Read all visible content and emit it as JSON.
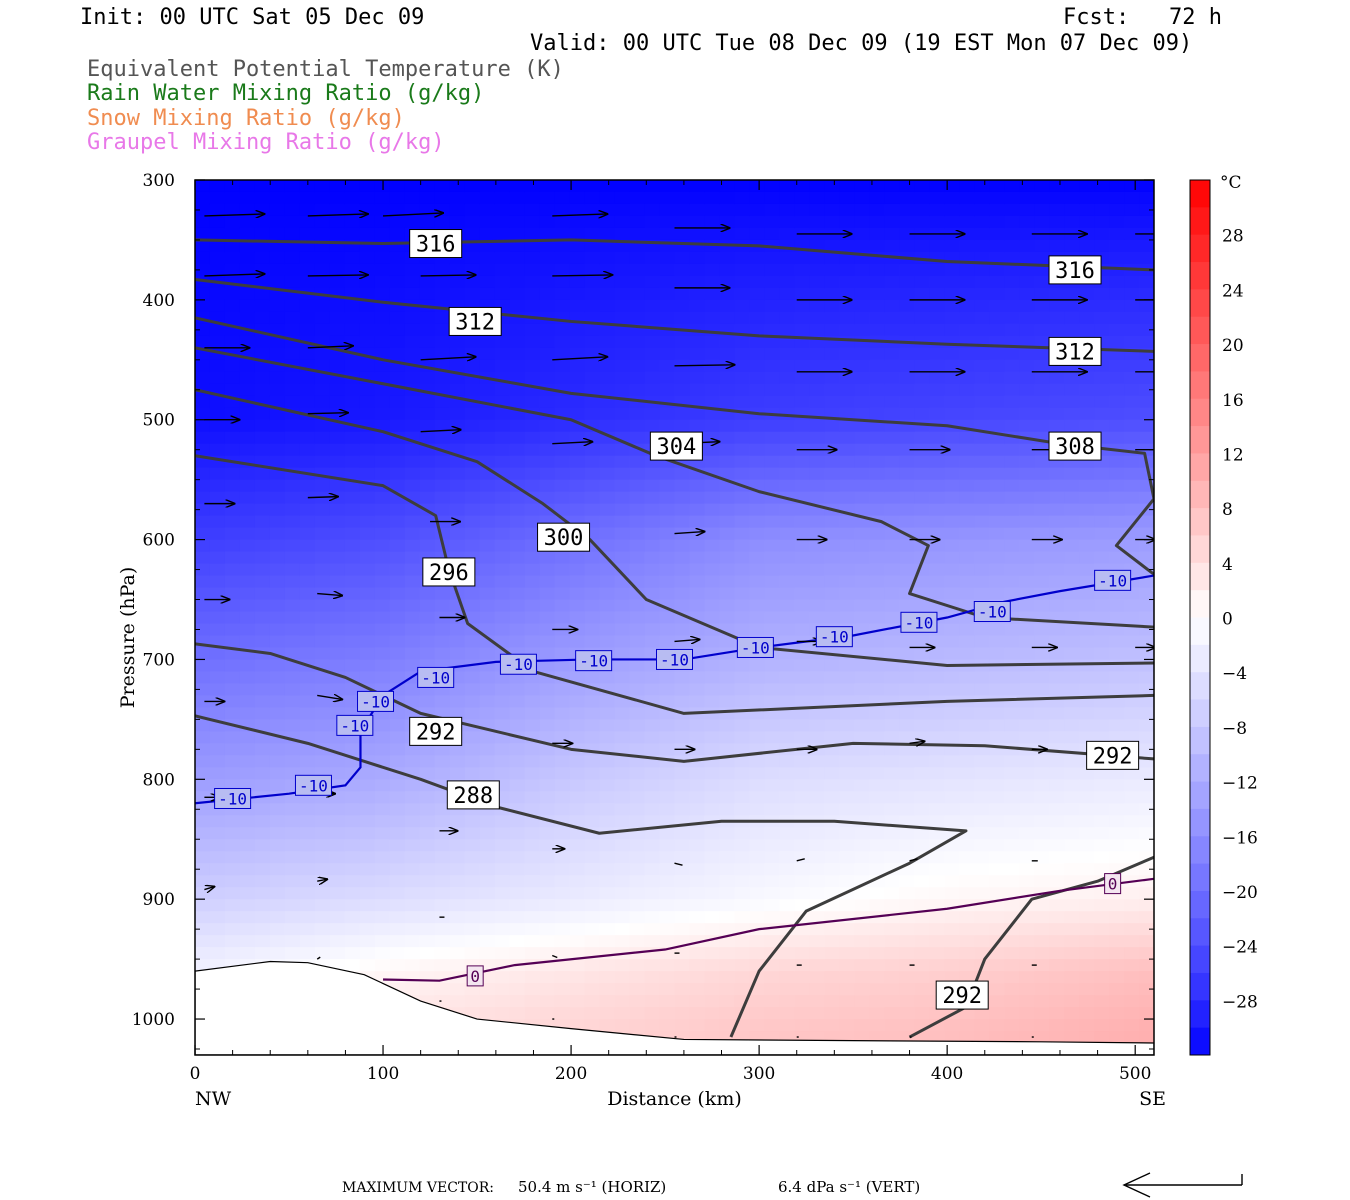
{
  "header": {
    "init": "Init: 00 UTC Sat 05 Dec 09",
    "fcst": "Fcst:   72 h",
    "valid": "Valid: 00 UTC Tue 08 Dec 09 (19 EST Mon 07 Dec 09)"
  },
  "legend": [
    {
      "text": "Equivalent Potential Temperature (K)",
      "color": "#555555"
    },
    {
      "text": "Rain Water Mixing Ratio (g/kg)",
      "color": "#1a7a1a"
    },
    {
      "text": "Snow Mixing Ratio (g/kg)",
      "color": "#f08c50"
    },
    {
      "text": "Graupel Mixing Ratio (g/kg)",
      "color": "#e878e8"
    }
  ],
  "footer": {
    "max_vector_label": "MAXIMUM VECTOR:",
    "horiz": "50.4 m s⁻¹ (HORIZ)",
    "vert": "6.4 dPa s⁻¹ (VERT)"
  },
  "chart_data": {
    "type": "cross-section",
    "xlabel": "Distance (km)",
    "ylabel": "Pressure (hPa)",
    "xlim": [
      0,
      510
    ],
    "ylim": [
      1030,
      300
    ],
    "x_ticks": [
      0,
      100,
      200,
      300,
      400,
      500
    ],
    "y_ticks": [
      300,
      400,
      500,
      600,
      700,
      800,
      900,
      1000
    ],
    "x_end_labels": {
      "left": "NW",
      "right": "SE"
    },
    "colorbar": {
      "unit": "°C",
      "ticks": [
        28,
        24,
        20,
        16,
        12,
        8,
        4,
        0,
        -4,
        -8,
        -12,
        -16,
        -20,
        -24,
        -28
      ],
      "min": -32,
      "max": 32
    },
    "temperature_field": [
      {
        "x": 0,
        "levels": [
          [
            300,
            -32
          ],
          [
            500,
            -31
          ],
          [
            600,
            -26
          ],
          [
            700,
            -20
          ],
          [
            800,
            -14
          ],
          [
            900,
            -7
          ],
          [
            960,
            -2
          ],
          [
            1000,
            0
          ]
        ]
      },
      {
        "x": 100,
        "levels": [
          [
            300,
            -32
          ],
          [
            500,
            -30
          ],
          [
            600,
            -24
          ],
          [
            700,
            -18
          ],
          [
            800,
            -12
          ],
          [
            900,
            -5
          ],
          [
            960,
            1
          ],
          [
            1000,
            3
          ]
        ]
      },
      {
        "x": 200,
        "levels": [
          [
            300,
            -32
          ],
          [
            500,
            -28
          ],
          [
            600,
            -20
          ],
          [
            700,
            -14
          ],
          [
            800,
            -8
          ],
          [
            900,
            -3
          ],
          [
            960,
            3
          ],
          [
            1000,
            5
          ]
        ]
      },
      {
        "x": 300,
        "levels": [
          [
            300,
            -32
          ],
          [
            500,
            -26
          ],
          [
            600,
            -16
          ],
          [
            700,
            -11
          ],
          [
            800,
            -5
          ],
          [
            900,
            -1
          ],
          [
            960,
            5
          ],
          [
            1010,
            7
          ]
        ]
      },
      {
        "x": 400,
        "levels": [
          [
            300,
            -32
          ],
          [
            500,
            -25
          ],
          [
            600,
            -15
          ],
          [
            700,
            -10
          ],
          [
            800,
            -4
          ],
          [
            900,
            1
          ],
          [
            960,
            6
          ],
          [
            1010,
            8
          ]
        ]
      },
      {
        "x": 510,
        "levels": [
          [
            300,
            -32
          ],
          [
            500,
            -24
          ],
          [
            600,
            -14
          ],
          [
            700,
            -9
          ],
          [
            800,
            -3
          ],
          [
            900,
            2
          ],
          [
            960,
            8
          ],
          [
            1010,
            10
          ]
        ]
      }
    ],
    "theta_e_contours": [
      {
        "value": 316,
        "points": [
          [
            0,
            350
          ],
          [
            100,
            353
          ],
          [
            200,
            350
          ],
          [
            300,
            355
          ],
          [
            400,
            368
          ],
          [
            510,
            375
          ]
        ],
        "labels": [
          [
            128,
            353
          ],
          [
            468,
            375
          ]
        ]
      },
      {
        "value": 312,
        "points": [
          [
            0,
            383
          ],
          [
            100,
            402
          ],
          [
            200,
            418
          ],
          [
            300,
            430
          ],
          [
            400,
            437
          ],
          [
            510,
            443
          ]
        ],
        "labels": [
          [
            149,
            418
          ],
          [
            468,
            443
          ]
        ]
      },
      {
        "value": 308,
        "points": [
          [
            0,
            415
          ],
          [
            100,
            450
          ],
          [
            200,
            478
          ],
          [
            300,
            495
          ],
          [
            400,
            505
          ],
          [
            460,
            520
          ],
          [
            505,
            528
          ],
          [
            510,
            566
          ],
          [
            490,
            605
          ],
          [
            510,
            629
          ]
        ],
        "labels": [
          [
            468,
            522
          ]
        ]
      },
      {
        "value": 304,
        "points": [
          [
            0,
            440
          ],
          [
            100,
            470
          ],
          [
            200,
            500
          ],
          [
            245,
            530
          ],
          [
            300,
            560
          ],
          [
            365,
            585
          ],
          [
            390,
            605
          ],
          [
            380,
            645
          ],
          [
            420,
            665
          ],
          [
            510,
            673
          ]
        ],
        "labels": [
          [
            256,
            522
          ]
        ]
      },
      {
        "value": 300,
        "points": [
          [
            0,
            475
          ],
          [
            100,
            510
          ],
          [
            150,
            535
          ],
          [
            185,
            570
          ],
          [
            210,
            600
          ],
          [
            240,
            650
          ],
          [
            300,
            690
          ],
          [
            400,
            705
          ],
          [
            510,
            703
          ]
        ],
        "labels": [
          [
            196,
            598
          ]
        ]
      },
      {
        "value": 296,
        "points": [
          [
            0,
            530
          ],
          [
            100,
            555
          ],
          [
            128,
            580
          ],
          [
            135,
            625
          ],
          [
            145,
            670
          ],
          [
            180,
            710
          ],
          [
            260,
            745
          ],
          [
            400,
            735
          ],
          [
            510,
            730
          ]
        ],
        "labels": [
          [
            135,
            627
          ]
        ]
      },
      {
        "value": 292,
        "points": [
          [
            0,
            687
          ],
          [
            40,
            695
          ],
          [
            80,
            715
          ],
          [
            120,
            745
          ],
          [
            200,
            775
          ],
          [
            260,
            785
          ],
          [
            350,
            770
          ],
          [
            420,
            772
          ],
          [
            510,
            783
          ]
        ],
        "labels": [
          [
            128,
            760
          ],
          [
            488,
            780
          ]
        ]
      },
      {
        "value": 288,
        "points": [
          [
            0,
            747
          ],
          [
            60,
            770
          ],
          [
            120,
            800
          ],
          [
            160,
            823
          ],
          [
            215,
            845
          ],
          [
            280,
            835
          ],
          [
            340,
            835
          ],
          [
            410,
            843
          ],
          [
            380,
            870
          ],
          [
            325,
            910
          ],
          [
            300,
            960
          ],
          [
            285,
            1015
          ]
        ],
        "labels": [
          [
            148,
            813
          ]
        ]
      },
      {
        "value": 292,
        "points": [
          [
            380,
            1015
          ],
          [
            410,
            990
          ],
          [
            420,
            950
          ],
          [
            445,
            900
          ],
          [
            480,
            885
          ],
          [
            510,
            865
          ]
        ],
        "labels": [
          [
            408,
            980
          ]
        ]
      }
    ],
    "isotherms": [
      {
        "value": -10,
        "color": "#0000cc",
        "points": [
          [
            0,
            820
          ],
          [
            50,
            812
          ],
          [
            80,
            805
          ],
          [
            88,
            790
          ],
          [
            88,
            760
          ],
          [
            100,
            730
          ],
          [
            120,
            710
          ],
          [
            160,
            702
          ],
          [
            210,
            700
          ],
          [
            260,
            700
          ],
          [
            300,
            690
          ],
          [
            350,
            680
          ],
          [
            400,
            665
          ],
          [
            430,
            652
          ],
          [
            460,
            643
          ],
          [
            510,
            630
          ]
        ],
        "labels": [
          [
            20,
            816
          ],
          [
            63,
            805
          ],
          [
            85,
            755
          ],
          [
            96,
            735
          ],
          [
            128,
            715
          ],
          [
            172,
            704
          ],
          [
            212,
            701
          ],
          [
            255,
            700
          ],
          [
            298,
            690
          ],
          [
            340,
            681
          ],
          [
            385,
            669
          ],
          [
            424,
            660
          ],
          [
            488,
            634
          ]
        ]
      },
      {
        "value": 0,
        "color": "#550055",
        "points": [
          [
            100,
            967
          ],
          [
            130,
            968
          ],
          [
            170,
            955
          ],
          [
            250,
            942
          ],
          [
            300,
            925
          ],
          [
            400,
            908
          ],
          [
            460,
            893
          ],
          [
            510,
            883
          ]
        ],
        "labels": [
          [
            149,
            964
          ],
          [
            488,
            887
          ]
        ]
      }
    ],
    "terrain_pressure": [
      [
        0,
        960
      ],
      [
        40,
        952
      ],
      [
        60,
        953
      ],
      [
        90,
        963
      ],
      [
        120,
        985
      ],
      [
        150,
        1000
      ],
      [
        200,
        1008
      ],
      [
        260,
        1017
      ],
      [
        350,
        1018
      ],
      [
        450,
        1019
      ],
      [
        510,
        1020
      ]
    ],
    "wind_vectors": [
      [
        5,
        330,
        60,
        -2
      ],
      [
        60,
        330,
        60,
        -2
      ],
      [
        100,
        330,
        60,
        -3
      ],
      [
        190,
        330,
        55,
        -2
      ],
      [
        255,
        340,
        55,
        0
      ],
      [
        320,
        345,
        55,
        0
      ],
      [
        380,
        345,
        55,
        0
      ],
      [
        445,
        345,
        55,
        0
      ],
      [
        500,
        345,
        45,
        0
      ],
      [
        5,
        380,
        60,
        -2
      ],
      [
        60,
        380,
        60,
        -1
      ],
      [
        120,
        380,
        55,
        -1
      ],
      [
        190,
        380,
        60,
        -1
      ],
      [
        255,
        390,
        55,
        0
      ],
      [
        320,
        400,
        55,
        0
      ],
      [
        380,
        400,
        55,
        0
      ],
      [
        445,
        400,
        55,
        0
      ],
      [
        500,
        400,
        45,
        0
      ],
      [
        5,
        440,
        45,
        0
      ],
      [
        60,
        440,
        45,
        -2
      ],
      [
        120,
        450,
        55,
        -3
      ],
      [
        190,
        450,
        55,
        -3
      ],
      [
        255,
        455,
        60,
        -1
      ],
      [
        320,
        460,
        55,
        0
      ],
      [
        380,
        460,
        55,
        0
      ],
      [
        445,
        460,
        55,
        0
      ],
      [
        500,
        460,
        45,
        0
      ],
      [
        5,
        500,
        35,
        0
      ],
      [
        60,
        495,
        40,
        -1
      ],
      [
        120,
        510,
        40,
        -2
      ],
      [
        190,
        520,
        40,
        -2
      ],
      [
        255,
        520,
        45,
        -2
      ],
      [
        320,
        525,
        40,
        0
      ],
      [
        380,
        525,
        40,
        0
      ],
      [
        445,
        525,
        40,
        0
      ],
      [
        500,
        525,
        30,
        0
      ],
      [
        5,
        570,
        30,
        0
      ],
      [
        60,
        565,
        30,
        -1
      ],
      [
        125,
        585,
        30,
        0
      ],
      [
        190,
        590,
        30,
        0
      ],
      [
        255,
        595,
        30,
        -2
      ],
      [
        320,
        600,
        30,
        0
      ],
      [
        380,
        600,
        30,
        0
      ],
      [
        445,
        600,
        30,
        0
      ],
      [
        500,
        600,
        20,
        0
      ],
      [
        5,
        650,
        25,
        0
      ],
      [
        65,
        645,
        25,
        2
      ],
      [
        130,
        665,
        25,
        0
      ],
      [
        190,
        675,
        25,
        0
      ],
      [
        255,
        685,
        25,
        -2
      ],
      [
        320,
        685,
        25,
        0
      ],
      [
        380,
        690,
        25,
        0
      ],
      [
        445,
        690,
        25,
        0
      ],
      [
        500,
        690,
        20,
        0
      ],
      [
        5,
        735,
        20,
        0
      ],
      [
        65,
        730,
        25,
        4
      ],
      [
        130,
        760,
        20,
        0
      ],
      [
        190,
        770,
        20,
        0
      ],
      [
        255,
        775,
        20,
        0
      ],
      [
        320,
        775,
        20,
        0
      ],
      [
        380,
        770,
        15,
        -2
      ],
      [
        445,
        775,
        15,
        0
      ],
      [
        5,
        815,
        15,
        0
      ],
      [
        65,
        812,
        18,
        0
      ],
      [
        130,
        843,
        18,
        0
      ],
      [
        190,
        858,
        12,
        0
      ],
      [
        255,
        870,
        8,
        2
      ],
      [
        320,
        868,
        8,
        -2
      ],
      [
        380,
        868,
        8,
        -2
      ],
      [
        445,
        868,
        6,
        0
      ],
      [
        5,
        892,
        10,
        -3
      ],
      [
        65,
        885,
        10,
        -2
      ],
      [
        130,
        915,
        5,
        0
      ],
      [
        190,
        947,
        5,
        2
      ],
      [
        255,
        945,
        5,
        0
      ],
      [
        320,
        955,
        5,
        0
      ],
      [
        380,
        955,
        5,
        0
      ],
      [
        445,
        955,
        5,
        0
      ],
      [
        65,
        950,
        3,
        -2
      ],
      [
        130,
        985,
        2,
        0
      ],
      [
        190,
        1000,
        2,
        0
      ],
      [
        255,
        1015,
        2,
        0
      ],
      [
        320,
        1015,
        2,
        0
      ],
      [
        380,
        1015,
        2,
        0
      ],
      [
        445,
        1015,
        2,
        0
      ]
    ]
  }
}
